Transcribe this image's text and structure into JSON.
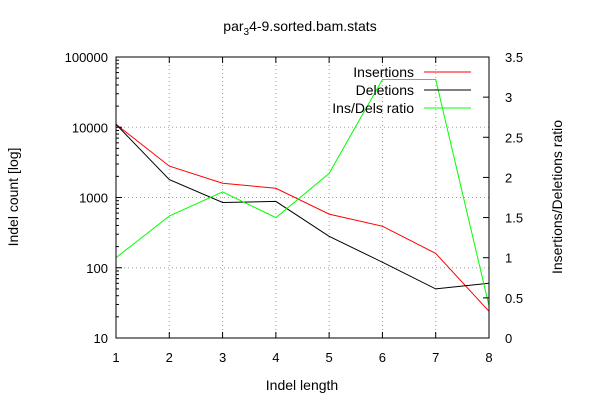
{
  "chart_data": {
    "type": "line",
    "title_main": "par",
    "title_sub": "3",
    "title_rest": "4-9.sorted.bam.stats",
    "xlabel": "Indel length",
    "ylabel": "Indel count [log]",
    "y2label": "Insertions/Deletions ratio",
    "x": [
      1,
      2,
      3,
      4,
      5,
      6,
      7,
      8
    ],
    "xlim": [
      1,
      8
    ],
    "y_scale": "log",
    "ylim": [
      10,
      100000
    ],
    "y2lim": [
      0,
      3.5
    ],
    "xticks": [
      "1",
      "2",
      "3",
      "4",
      "5",
      "6",
      "7",
      "8"
    ],
    "yticks": [
      "10",
      "100",
      "1000",
      "10000",
      "100000"
    ],
    "y2ticks": [
      "0",
      "0.5",
      "1",
      "1.5",
      "2",
      "2.5",
      "3",
      "3.5"
    ],
    "grid": true,
    "legend_position": "top-right",
    "series": [
      {
        "name": "Insertions",
        "axis": "left",
        "color": "#ff0000",
        "values": [
          11000,
          2800,
          1600,
          1350,
          580,
          390,
          160,
          24
        ]
      },
      {
        "name": "Deletions",
        "axis": "left",
        "color": "#000000",
        "values": [
          11000,
          1800,
          850,
          880,
          280,
          120,
          50,
          60
        ]
      },
      {
        "name": "Ins/Dels ratio",
        "axis": "right",
        "color": "#00ff00",
        "values": [
          1.0,
          1.52,
          1.82,
          1.5,
          2.05,
          3.22,
          3.22,
          0.4
        ]
      }
    ]
  }
}
